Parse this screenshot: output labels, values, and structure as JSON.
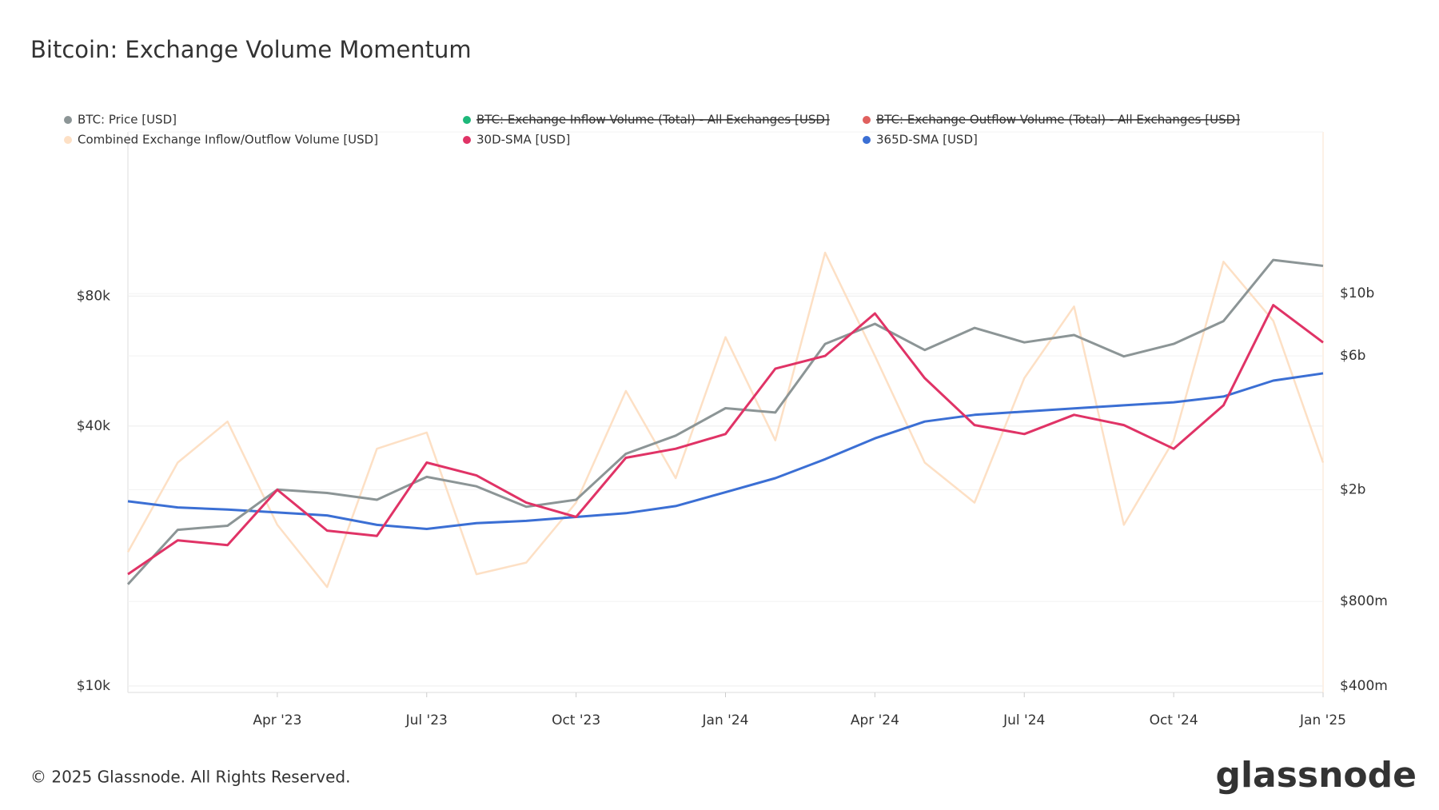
{
  "chart_data": {
    "type": "line",
    "title": "Bitcoin: Exchange Volume Momentum",
    "footer": "© 2025 Glassnode. All Rights Reserved.",
    "brand": "glassnode",
    "x": [
      "2023-01",
      "2023-02",
      "2023-03",
      "2023-04",
      "2023-05",
      "2023-06",
      "2023-07",
      "2023-08",
      "2023-09",
      "2023-10",
      "2023-11",
      "2023-12",
      "2024-01",
      "2024-02",
      "2024-03",
      "2024-04",
      "2024-05",
      "2024-06",
      "2024-07",
      "2024-08",
      "2024-09",
      "2024-10",
      "2024-11",
      "2024-12",
      "2025-01"
    ],
    "xticks": [
      {
        "value": "2023-04",
        "label": "Apr '23"
      },
      {
        "value": "2023-07",
        "label": "Jul '23"
      },
      {
        "value": "2023-10",
        "label": "Oct '23"
      },
      {
        "value": "2024-01",
        "label": "Jan '24"
      },
      {
        "value": "2024-04",
        "label": "Apr '24"
      },
      {
        "value": "2024-07",
        "label": "Jul '24"
      },
      {
        "value": "2024-10",
        "label": "Oct '24"
      },
      {
        "value": "2025-01",
        "label": "Jan '25"
      }
    ],
    "ylog": true,
    "ylim": [
      9660,
      192000
    ],
    "yticks": [
      {
        "value": 10000,
        "label": "$10k"
      },
      {
        "value": 40000,
        "label": "$40k"
      },
      {
        "value": 80000,
        "label": "$80k"
      }
    ],
    "y2log": true,
    "y2lim": [
      379000000,
      37700000000
    ],
    "y2ticks": [
      {
        "value": 400000000,
        "label": "$400m"
      },
      {
        "value": 800000000,
        "label": "$800m"
      },
      {
        "value": 2000000000,
        "label": "$2b"
      },
      {
        "value": 6000000000,
        "label": "$6b"
      },
      {
        "value": 10000000000,
        "label": "$10b"
      }
    ],
    "grid": true,
    "series": [
      {
        "name": "BTC: Price [USD]",
        "color": "#8c9596",
        "values": [
          17200,
          23000,
          23500,
          28500,
          28000,
          27000,
          30500,
          29000,
          26000,
          27000,
          34500,
          38000,
          44000,
          43000,
          62000,
          69000,
          60000,
          67500,
          62500,
          65000,
          58000,
          62000,
          70000,
          97000,
          94000
        ]
      },
      {
        "name": "Combined Exchange Inflow/Outflow Volume [USD]",
        "color": "#fde0c5",
        "axis": "y2",
        "values": [
          1200000000,
          2500000000,
          3500000000,
          1500000000,
          900000000,
          2800000000,
          3200000000,
          1000000000,
          1100000000,
          1800000000,
          4500000000,
          2200000000,
          7000000000,
          3000000000,
          14000000000,
          6000000000,
          2500000000,
          1800000000,
          5000000000,
          9000000000,
          1500000000,
          3000000000,
          13000000000,
          8000000000,
          2500000000
        ]
      },
      {
        "name": "30D-SMA [USD]",
        "color": "#e03366",
        "axis": "y2",
        "values": [
          1000000000,
          1320000000,
          1270000000,
          2000000000,
          1430000000,
          1370000000,
          2500000000,
          2250000000,
          1800000000,
          1600000000,
          2600000000,
          2800000000,
          3160000000,
          5400000000,
          6000000000,
          8500000000,
          5000000000,
          3400000000,
          3160000000,
          3700000000,
          3400000000,
          2800000000,
          4000000000,
          9100000000,
          6700000000
        ]
      },
      {
        "name": "365D-SMA [USD]",
        "color": "#3b6fd4",
        "axis": "y2",
        "values": [
          1820000000,
          1730000000,
          1700000000,
          1660000000,
          1620000000,
          1500000000,
          1450000000,
          1520000000,
          1550000000,
          1600000000,
          1650000000,
          1750000000,
          1960000000,
          2200000000,
          2570000000,
          3050000000,
          3500000000,
          3700000000,
          3800000000,
          3900000000,
          4000000000,
          4100000000,
          4300000000,
          4900000000,
          5200000000
        ]
      }
    ],
    "legend_hidden": [
      {
        "name": "BTC: Exchange Inflow Volume (Total) - All Exchanges [USD]",
        "color": "#1db87a"
      },
      {
        "name": "BTC: Exchange Outflow Volume (Total) - All Exchanges [USD]",
        "color": "#e0605e"
      }
    ]
  }
}
